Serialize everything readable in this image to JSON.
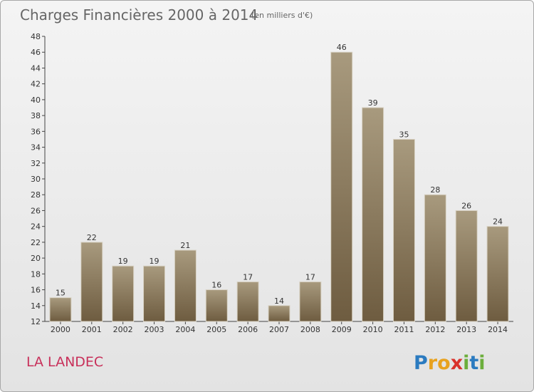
{
  "chart_data": {
    "type": "bar",
    "title": "Charges Financières 2000 à 2014",
    "subtitle": "(en milliers d'€)",
    "categories": [
      "2000",
      "2001",
      "2002",
      "2003",
      "2004",
      "2005",
      "2006",
      "2007",
      "2008",
      "2009",
      "2010",
      "2011",
      "2012",
      "2013",
      "2014"
    ],
    "values": [
      15,
      22,
      19,
      19,
      21,
      16,
      17,
      14,
      17,
      46,
      39,
      35,
      28,
      26,
      24
    ],
    "ylim": [
      12,
      48
    ],
    "yticks": [
      12,
      14,
      16,
      18,
      20,
      22,
      24,
      26,
      28,
      30,
      32,
      34,
      36,
      38,
      40,
      42,
      44,
      46,
      48
    ],
    "grid": false,
    "bar_color_top": "#a89a7e",
    "bar_color_bottom": "#6e5c40"
  },
  "location": "LA LANDEC",
  "brand": {
    "name": "Proxiti",
    "letters": [
      "P",
      "r",
      "o",
      "x",
      "i",
      "t",
      "i"
    ],
    "colors": [
      "#2b7bc0",
      "#e8a21f",
      "#e8a21f",
      "#d9322c",
      "#6cae3c",
      "#2b7bc0",
      "#6cae3c"
    ]
  }
}
